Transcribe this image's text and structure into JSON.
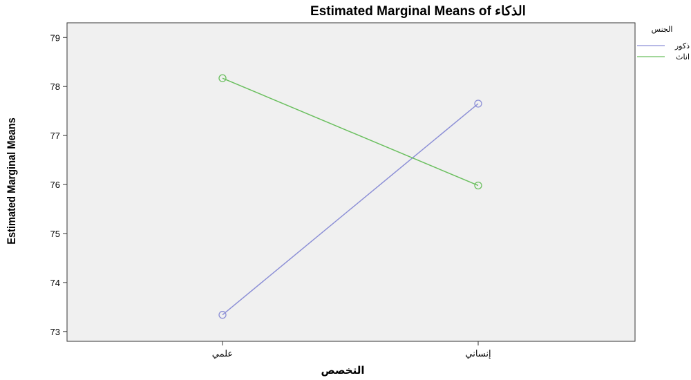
{
  "chart_data": {
    "type": "line",
    "title": "Estimated Marginal Means of الذكاء",
    "xlabel": "التخصص",
    "ylabel": "Estimated Marginal Means",
    "categories": [
      "علمي",
      "إنساني"
    ],
    "ylim": [
      72.8,
      79.3
    ],
    "yticks": [
      73,
      74,
      75,
      76,
      77,
      78,
      79
    ],
    "grid": false,
    "legend": {
      "title": "الجنس",
      "placement": "right"
    },
    "series": [
      {
        "name": "ذكور",
        "values": [
          73.34,
          77.65
        ],
        "color": "#8c8fd6"
      },
      {
        "name": "اناث",
        "values": [
          78.17,
          75.98
        ],
        "color": "#6abf5e"
      }
    ]
  }
}
